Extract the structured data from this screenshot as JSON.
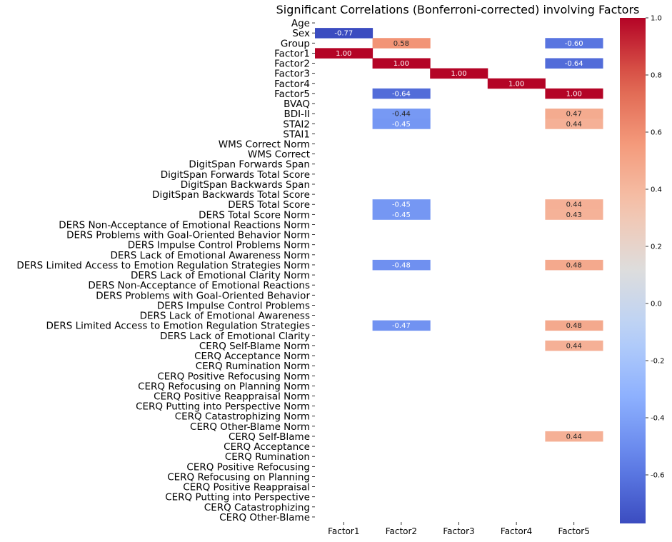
{
  "chart_data": {
    "type": "heatmap",
    "title": "Significant Correlations (Bonferroni-corrected) involving Factors",
    "columns": [
      "Factor1",
      "Factor2",
      "Factor3",
      "Factor4",
      "Factor5"
    ],
    "rows": [
      "Age",
      "Sex",
      "Group",
      "Factor1",
      "Factor2",
      "Factor3",
      "Factor4",
      "Factor5",
      "BVAQ",
      "BDI-II",
      "STAI2",
      "STAI1",
      "WMS Correct Norm",
      "WMS Correct",
      "DigitSpan Forwards Span",
      "DigitSpan Forwards Total Score",
      "DigitSpan Backwards Span",
      "DigitSpan Backwards Total Score",
      "DERS Total Score",
      "DERS Total Score Norm",
      "DERS Non-Acceptance of Emotional Reactions Norm",
      "DERS Problems with Goal-Oriented Behavior Norm",
      "DERS Impulse Control Problems Norm",
      "DERS Lack of Emotional Awareness Norm",
      "DERS Limited Access to Emotion Regulation Strategies Norm",
      "DERS Lack of Emotional Clarity Norm",
      "DERS Non-Acceptance of Emotional Reactions",
      "DERS Problems with Goal-Oriented Behavior",
      "DERS Impulse Control Problems",
      "DERS Lack of Emotional Awareness",
      "DERS Limited Access to Emotion Regulation Strategies",
      "DERS Lack of Emotional Clarity",
      "CERQ Self-Blame Norm",
      "CERQ Acceptance Norm",
      "CERQ Rumination Norm",
      "CERQ Positive Refocusing Norm",
      "CERQ Refocusing on Planning Norm",
      "CERQ Positive Reappraisal Norm",
      "CERQ Putting into Perspective Norm",
      "CERQ Catastrophizing Norm",
      "CERQ Other-Blame Norm",
      "CERQ Self-Blame",
      "CERQ Acceptance",
      "CERQ Rumination",
      "CERQ Positive Refocusing",
      "CERQ Refocusing on Planning",
      "CERQ Positive Reappraisal",
      "CERQ Putting into Perspective",
      "CERQ Catastrophizing",
      "CERQ Other-Blame"
    ],
    "values": [
      [
        null,
        null,
        null,
        null,
        null
      ],
      [
        -0.77,
        null,
        null,
        null,
        null
      ],
      [
        null,
        0.58,
        null,
        null,
        -0.6
      ],
      [
        1.0,
        null,
        null,
        null,
        null
      ],
      [
        null,
        1.0,
        null,
        null,
        -0.64
      ],
      [
        null,
        null,
        1.0,
        null,
        null
      ],
      [
        null,
        null,
        null,
        1.0,
        null
      ],
      [
        null,
        -0.64,
        null,
        null,
        1.0
      ],
      [
        null,
        null,
        null,
        null,
        null
      ],
      [
        null,
        -0.44,
        null,
        null,
        0.47
      ],
      [
        null,
        -0.45,
        null,
        null,
        0.44
      ],
      [
        null,
        null,
        null,
        null,
        null
      ],
      [
        null,
        null,
        null,
        null,
        null
      ],
      [
        null,
        null,
        null,
        null,
        null
      ],
      [
        null,
        null,
        null,
        null,
        null
      ],
      [
        null,
        null,
        null,
        null,
        null
      ],
      [
        null,
        null,
        null,
        null,
        null
      ],
      [
        null,
        null,
        null,
        null,
        null
      ],
      [
        null,
        -0.45,
        null,
        null,
        0.44
      ],
      [
        null,
        -0.45,
        null,
        null,
        0.43
      ],
      [
        null,
        null,
        null,
        null,
        null
      ],
      [
        null,
        null,
        null,
        null,
        null
      ],
      [
        null,
        null,
        null,
        null,
        null
      ],
      [
        null,
        null,
        null,
        null,
        null
      ],
      [
        null,
        -0.48,
        null,
        null,
        0.48
      ],
      [
        null,
        null,
        null,
        null,
        null
      ],
      [
        null,
        null,
        null,
        null,
        null
      ],
      [
        null,
        null,
        null,
        null,
        null
      ],
      [
        null,
        null,
        null,
        null,
        null
      ],
      [
        null,
        null,
        null,
        null,
        null
      ],
      [
        null,
        -0.47,
        null,
        null,
        0.48
      ],
      [
        null,
        null,
        null,
        null,
        null
      ],
      [
        null,
        null,
        null,
        null,
        0.44
      ],
      [
        null,
        null,
        null,
        null,
        null
      ],
      [
        null,
        null,
        null,
        null,
        null
      ],
      [
        null,
        null,
        null,
        null,
        null
      ],
      [
        null,
        null,
        null,
        null,
        null
      ],
      [
        null,
        null,
        null,
        null,
        null
      ],
      [
        null,
        null,
        null,
        null,
        null
      ],
      [
        null,
        null,
        null,
        null,
        null
      ],
      [
        null,
        null,
        null,
        null,
        null
      ],
      [
        null,
        null,
        null,
        null,
        0.44
      ],
      [
        null,
        null,
        null,
        null,
        null
      ],
      [
        null,
        null,
        null,
        null,
        null
      ],
      [
        null,
        null,
        null,
        null,
        null
      ],
      [
        null,
        null,
        null,
        null,
        null
      ],
      [
        null,
        null,
        null,
        null,
        null
      ],
      [
        null,
        null,
        null,
        null,
        null
      ],
      [
        null,
        null,
        null,
        null,
        null
      ],
      [
        null,
        null,
        null,
        null,
        null
      ]
    ],
    "value_format": "2 decimals",
    "colormap": "coolwarm",
    "color_range": [
      -0.77,
      1.0
    ],
    "colorbar_ticks": [
      "1.0",
      "0.8",
      "0.6",
      "0.4",
      "0.2",
      "0.0",
      "-0.2",
      "-0.4",
      "-0.6"
    ],
    "colorbar_tick_values": [
      1.0,
      0.8,
      0.6,
      0.4,
      0.2,
      0.0,
      -0.2,
      -0.4,
      -0.6
    ],
    "grid": false,
    "legend": "colorbar-right"
  }
}
